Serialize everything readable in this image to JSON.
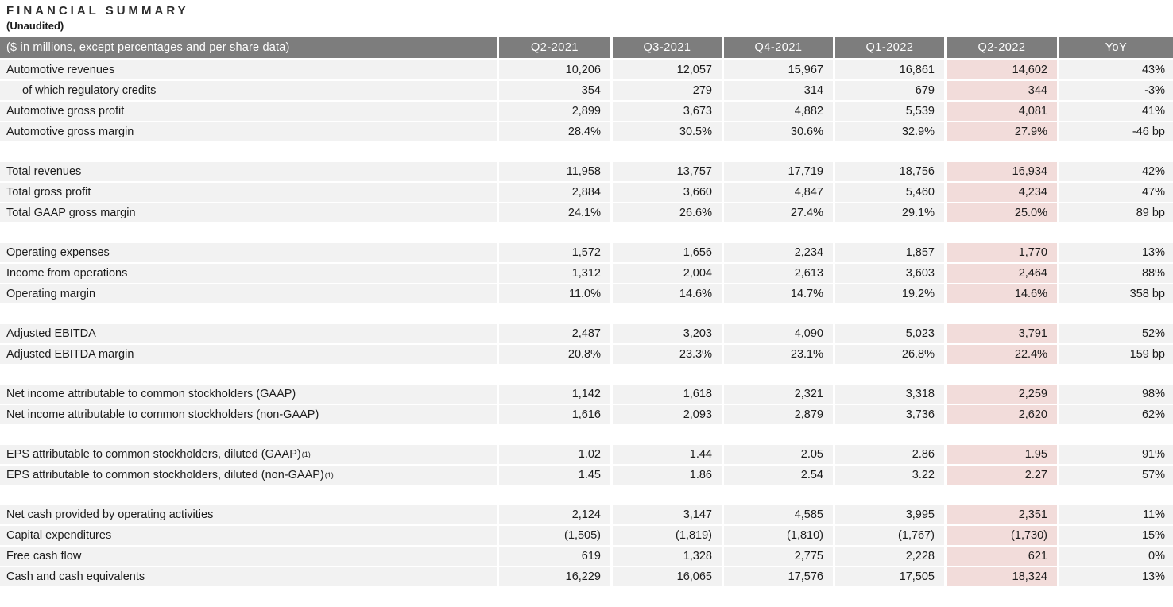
{
  "title": "FINANCIAL SUMMARY",
  "subtitle": "(Unaudited)",
  "colors": {
    "header_bg": "#7d7d7d",
    "header_text": "#ffffff",
    "row_bg": "#f2f2f2",
    "highlight_bg": "#f2dcda",
    "text": "#1c1c1c"
  },
  "table": {
    "header": {
      "label_col": "($ in millions, except percentages and per share data)",
      "period_cols": [
        "Q2-2021",
        "Q3-2021",
        "Q4-2021",
        "Q1-2022",
        "Q2-2022",
        "YoY"
      ]
    },
    "highlight_col_index": 4,
    "sections": [
      {
        "rows": [
          {
            "label": "Automotive revenues",
            "values": [
              "10,206",
              "12,057",
              "15,967",
              "16,861",
              "14,602",
              "43%"
            ]
          },
          {
            "label": "of which regulatory credits",
            "indent": true,
            "values": [
              "354",
              "279",
              "314",
              "679",
              "344",
              "-3%"
            ]
          },
          {
            "label": "Automotive gross profit",
            "values": [
              "2,899",
              "3,673",
              "4,882",
              "5,539",
              "4,081",
              "41%"
            ]
          },
          {
            "label": "Automotive gross margin",
            "values": [
              "28.4%",
              "30.5%",
              "30.6%",
              "32.9%",
              "27.9%",
              "-46 bp"
            ]
          }
        ]
      },
      {
        "rows": [
          {
            "label": "Total revenues",
            "values": [
              "11,958",
              "13,757",
              "17,719",
              "18,756",
              "16,934",
              "42%"
            ]
          },
          {
            "label": "Total gross profit",
            "values": [
              "2,884",
              "3,660",
              "4,847",
              "5,460",
              "4,234",
              "47%"
            ]
          },
          {
            "label": "Total GAAP gross margin",
            "values": [
              "24.1%",
              "26.6%",
              "27.4%",
              "29.1%",
              "25.0%",
              "89 bp"
            ]
          }
        ]
      },
      {
        "rows": [
          {
            "label": "Operating expenses",
            "values": [
              "1,572",
              "1,656",
              "2,234",
              "1,857",
              "1,770",
              "13%"
            ]
          },
          {
            "label": "Income from operations",
            "values": [
              "1,312",
              "2,004",
              "2,613",
              "3,603",
              "2,464",
              "88%"
            ]
          },
          {
            "label": "Operating margin",
            "values": [
              "11.0%",
              "14.6%",
              "14.7%",
              "19.2%",
              "14.6%",
              "358 bp"
            ]
          }
        ]
      },
      {
        "rows": [
          {
            "label": "Adjusted EBITDA",
            "values": [
              "2,487",
              "3,203",
              "4,090",
              "5,023",
              "3,791",
              "52%"
            ]
          },
          {
            "label": "Adjusted EBITDA margin",
            "values": [
              "20.8%",
              "23.3%",
              "23.1%",
              "26.8%",
              "22.4%",
              "159 bp"
            ]
          }
        ]
      },
      {
        "rows": [
          {
            "label": "Net income attributable to common stockholders (GAAP)",
            "values": [
              "1,142",
              "1,618",
              "2,321",
              "3,318",
              "2,259",
              "98%"
            ]
          },
          {
            "label": "Net income attributable to common stockholders (non-GAAP)",
            "values": [
              "1,616",
              "2,093",
              "2,879",
              "3,736",
              "2,620",
              "62%"
            ]
          }
        ]
      },
      {
        "rows": [
          {
            "label": "EPS attributable to common stockholders, diluted (GAAP)",
            "footnote": "(1)",
            "values": [
              "1.02",
              "1.44",
              "2.05",
              "2.86",
              "1.95",
              "91%"
            ]
          },
          {
            "label": "EPS attributable to common stockholders, diluted (non-GAAP)",
            "footnote": "(1)",
            "values": [
              "1.45",
              "1.86",
              "2.54",
              "3.22",
              "2.27",
              "57%"
            ]
          }
        ]
      },
      {
        "rows": [
          {
            "label": "Net cash provided by operating activities",
            "values": [
              "2,124",
              "3,147",
              "4,585",
              "3,995",
              "2,351",
              "11%"
            ]
          },
          {
            "label": "Capital expenditures",
            "values": [
              "(1,505)",
              "(1,819)",
              "(1,810)",
              "(1,767)",
              "(1,730)",
              "15%"
            ]
          },
          {
            "label": "Free cash flow",
            "values": [
              "619",
              "1,328",
              "2,775",
              "2,228",
              "621",
              "0%"
            ]
          },
          {
            "label": "Cash and cash equivalents",
            "values": [
              "16,229",
              "16,065",
              "17,576",
              "17,505",
              "18,324",
              "13%"
            ]
          }
        ]
      }
    ]
  }
}
